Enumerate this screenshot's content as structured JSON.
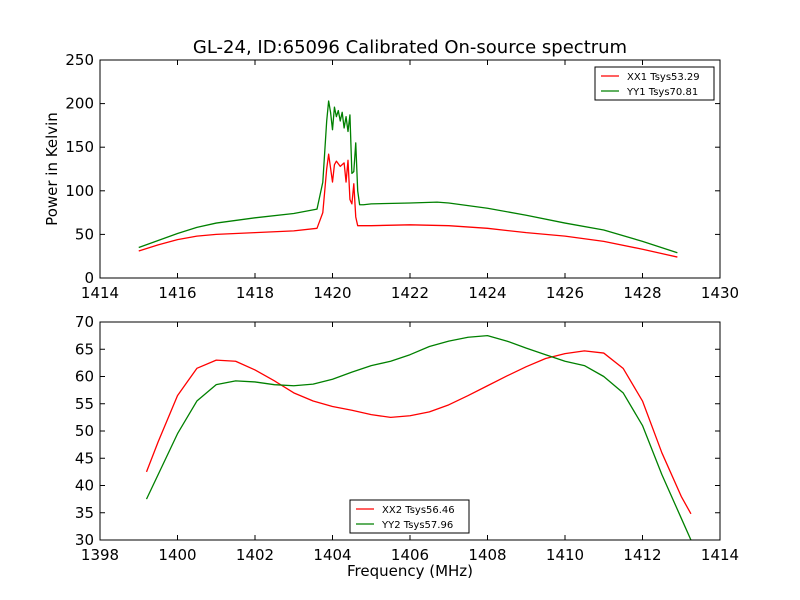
{
  "title": "GL-24, ID:65096 Calibrated On-source spectrum",
  "chart_data": [
    {
      "type": "line",
      "title": "GL-24, ID:65096 Calibrated On-source spectrum",
      "xlabel": "",
      "ylabel": "Power in Kelvin",
      "xlim": [
        1414,
        1430
      ],
      "ylim": [
        0,
        250
      ],
      "xticks": [
        "1414",
        "1416",
        "1418",
        "1420",
        "1422",
        "1424",
        "1426",
        "1428",
        "1430"
      ],
      "yticks": [
        "0",
        "50",
        "100",
        "150",
        "200",
        "250"
      ],
      "grid": false,
      "legend_position": "top-right",
      "series": [
        {
          "name": "XX1 Tsys53.29",
          "color": "#ff0000",
          "x": [
            1415.0,
            1415.5,
            1416.0,
            1416.5,
            1417.0,
            1418.0,
            1419.0,
            1419.6,
            1419.75,
            1419.85,
            1419.9,
            1420.0,
            1420.05,
            1420.1,
            1420.2,
            1420.3,
            1420.35,
            1420.4,
            1420.45,
            1420.5,
            1420.55,
            1420.6,
            1420.65,
            1420.7,
            1420.8,
            1421.0,
            1422.0,
            1423.0,
            1424.0,
            1425.0,
            1426.0,
            1427.0,
            1428.0,
            1428.9
          ],
          "y": [
            31,
            38,
            44,
            48,
            50,
            52,
            54,
            57,
            75,
            125,
            142,
            110,
            130,
            134,
            128,
            132,
            110,
            135,
            90,
            85,
            108,
            70,
            60,
            60,
            60,
            60,
            61,
            60,
            57,
            52,
            48,
            42,
            33,
            24
          ]
        },
        {
          "name": "YY1 Tsys70.81",
          "color": "#008000",
          "x": [
            1415.0,
            1415.5,
            1416.0,
            1416.5,
            1417.0,
            1418.0,
            1419.0,
            1419.6,
            1419.75,
            1419.85,
            1419.9,
            1419.95,
            1420.0,
            1420.05,
            1420.1,
            1420.15,
            1420.2,
            1420.25,
            1420.3,
            1420.35,
            1420.4,
            1420.45,
            1420.5,
            1420.55,
            1420.6,
            1420.65,
            1420.7,
            1420.8,
            1421.0,
            1422.0,
            1422.7,
            1423.0,
            1424.0,
            1425.0,
            1426.0,
            1427.0,
            1428.0,
            1428.9
          ],
          "y": [
            35,
            43,
            51,
            58,
            63,
            69,
            74,
            79,
            110,
            180,
            203,
            190,
            170,
            196,
            185,
            192,
            180,
            190,
            172,
            185,
            168,
            187,
            120,
            122,
            155,
            100,
            84,
            84,
            85,
            86,
            87,
            86,
            80,
            72,
            63,
            55,
            42,
            29
          ]
        }
      ]
    },
    {
      "type": "line",
      "title": "",
      "xlabel": "Frequency (MHz)",
      "ylabel": "",
      "xlim": [
        1398,
        1414
      ],
      "ylim": [
        30,
        70
      ],
      "xticks": [
        "1398",
        "1400",
        "1402",
        "1404",
        "1406",
        "1408",
        "1410",
        "1412",
        "1414"
      ],
      "yticks": [
        "30",
        "35",
        "40",
        "45",
        "50",
        "55",
        "60",
        "65",
        "70"
      ],
      "grid": false,
      "legend_position": "bottom-center",
      "series": [
        {
          "name": "XX2 Tsys56.46",
          "color": "#ff0000",
          "x": [
            1399.2,
            1399.5,
            1400.0,
            1400.5,
            1401.0,
            1401.5,
            1402.0,
            1402.5,
            1403.0,
            1403.5,
            1404.0,
            1404.5,
            1405.0,
            1405.5,
            1406.0,
            1406.5,
            1407.0,
            1407.5,
            1408.0,
            1408.5,
            1409.0,
            1409.5,
            1410.0,
            1410.5,
            1411.0,
            1411.5,
            1412.0,
            1412.5,
            1413.0,
            1413.25
          ],
          "y": [
            42.5,
            48,
            56.5,
            61.5,
            63,
            62.8,
            61.2,
            59.2,
            57,
            55.5,
            54.5,
            53.8,
            53,
            52.5,
            52.8,
            53.5,
            54.8,
            56.5,
            58.3,
            60.1,
            61.8,
            63.3,
            64.2,
            64.7,
            64.3,
            61.5,
            55.5,
            46,
            38,
            34.8
          ]
        },
        {
          "name": "YY2 Tsys57.96",
          "color": "#008000",
          "x": [
            1399.2,
            1399.5,
            1400.0,
            1400.5,
            1401.0,
            1401.5,
            1402.0,
            1402.5,
            1403.0,
            1403.5,
            1404.0,
            1404.5,
            1405.0,
            1405.5,
            1406.0,
            1406.5,
            1407.0,
            1407.5,
            1408.0,
            1408.5,
            1409.0,
            1409.5,
            1410.0,
            1410.5,
            1411.0,
            1411.5,
            1412.0,
            1412.5,
            1413.0,
            1413.25
          ],
          "y": [
            37.5,
            42,
            49.5,
            55.5,
            58.5,
            59.2,
            59,
            58.5,
            58.3,
            58.6,
            59.5,
            60.8,
            62,
            62.8,
            64,
            65.5,
            66.5,
            67.2,
            67.5,
            66.5,
            65.2,
            64,
            62.8,
            62,
            60,
            57,
            51,
            42,
            34,
            30
          ]
        }
      ]
    }
  ]
}
